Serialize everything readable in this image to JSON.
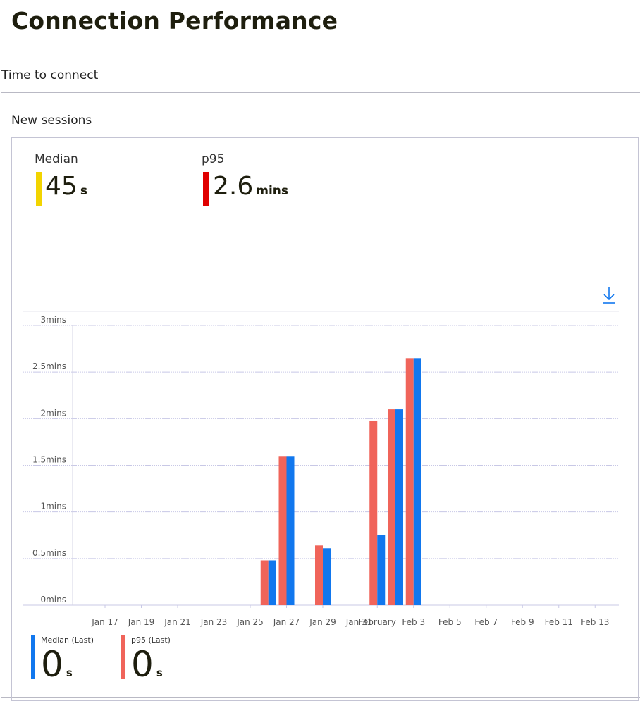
{
  "page": {
    "title": "Connection Performance",
    "section": "Time to connect",
    "card_title": "New sessions"
  },
  "summary": {
    "median": {
      "label": "Median",
      "value": "45",
      "unit": "s",
      "color": "#f2d400"
    },
    "p95": {
      "label": "p95",
      "value": "2.6",
      "unit": "mins",
      "color": "#e00000"
    }
  },
  "icons": {
    "download": "download-icon"
  },
  "legend": [
    {
      "label": "Median (Last)",
      "value": "0",
      "unit": "s",
      "color": "#1177ee"
    },
    {
      "label": "p95 (Last)",
      "value": "0",
      "unit": "s",
      "color": "#f0645a"
    }
  ],
  "chart_data": {
    "type": "bar",
    "x_ticks": [
      "Jan 17",
      "Jan 19",
      "Jan 21",
      "Jan 23",
      "Jan 25",
      "Jan 27",
      "Jan 29",
      "Jan 31",
      "February",
      "Feb 3",
      "Feb 5",
      "Feb 7",
      "Feb 9",
      "Feb 11",
      "Feb 13"
    ],
    "y_ticks": [
      "0mins",
      "0.5mins",
      "1mins",
      "1.5mins",
      "2mins",
      "2.5mins",
      "3mins"
    ],
    "ylim": [
      0,
      3
    ],
    "categories": [
      "Jan 26",
      "Jan 27",
      "Jan 29",
      "Feb 1",
      "Feb 2",
      "Feb 3"
    ],
    "series": [
      {
        "name": "p95",
        "color": "#f0645a",
        "values": [
          0.48,
          1.6,
          0.64,
          1.98,
          2.1,
          2.65
        ]
      },
      {
        "name": "Median",
        "color": "#1177ee",
        "values": [
          0.48,
          1.6,
          0.61,
          0.75,
          2.1,
          2.65
        ]
      }
    ],
    "grid": true
  }
}
